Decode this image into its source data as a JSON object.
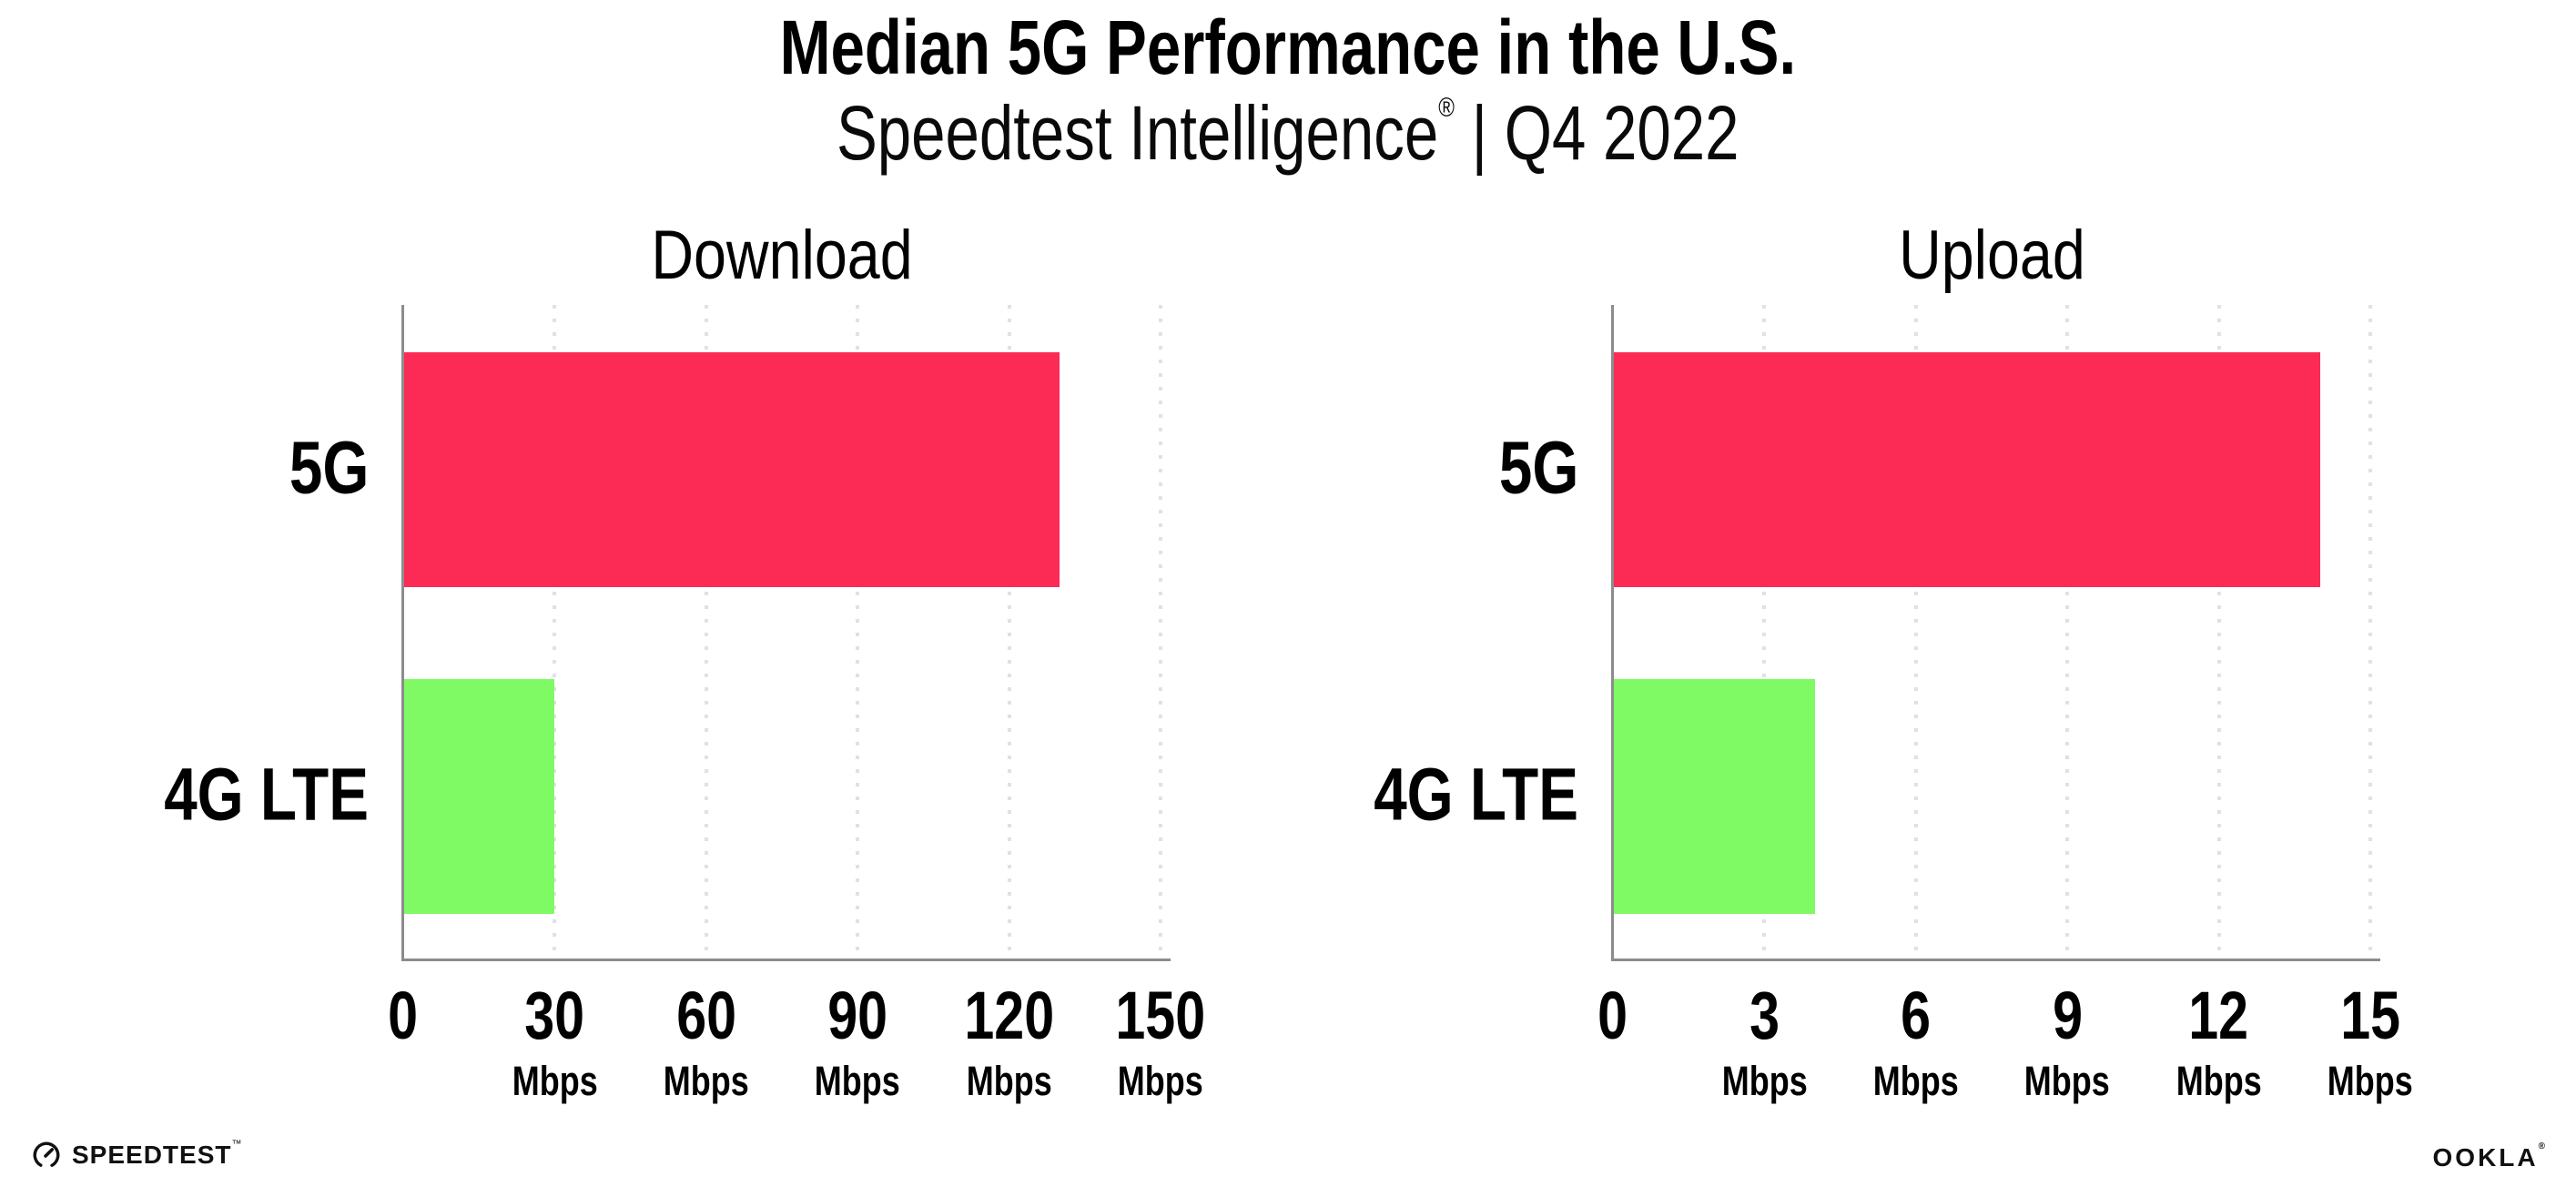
{
  "header": {
    "title": "Median 5G Performance in the U.S.",
    "subtitle_brand": "Speedtest Intelligence",
    "subtitle_reg": "®",
    "subtitle_rest": "| Q4 2022"
  },
  "footer": {
    "speedtest_label": "SPEEDTEST",
    "speedtest_tm": "™",
    "speedtest_icon": "speedometer-gauge-icon",
    "ookla_label": "OOKLA",
    "ookla_reg": "®"
  },
  "colors": {
    "bar_5g": "#fb2b56",
    "bar_4g_lte": "#80fa64",
    "axis": "#8c8c8c",
    "gridline": "#e0e0ea",
    "text": "#000000",
    "background": "#ffffff"
  },
  "chart_data": [
    {
      "type": "bar",
      "orientation": "horizontal",
      "title": "Download",
      "categories": [
        "5G",
        "4G LTE"
      ],
      "values": [
        130,
        30
      ],
      "unit": "Mbps",
      "xticks": [
        0,
        30,
        60,
        90,
        120,
        150
      ],
      "xlim": [
        0,
        151
      ],
      "unit_shown_on_zero_tick": false,
      "grid": "dotted-vertical",
      "legend": "none",
      "bar_colors": [
        "#fb2b56",
        "#80fa64"
      ]
    },
    {
      "type": "bar",
      "orientation": "horizontal",
      "title": "Upload",
      "categories": [
        "5G",
        "4G LTE"
      ],
      "values": [
        14,
        4
      ],
      "unit": "Mbps",
      "xticks": [
        0,
        3,
        6,
        9,
        12,
        15
      ],
      "xlim": [
        0,
        15.1
      ],
      "unit_shown_on_zero_tick": false,
      "grid": "dotted-vertical",
      "legend": "none",
      "bar_colors": [
        "#fb2b56",
        "#80fa64"
      ]
    }
  ]
}
